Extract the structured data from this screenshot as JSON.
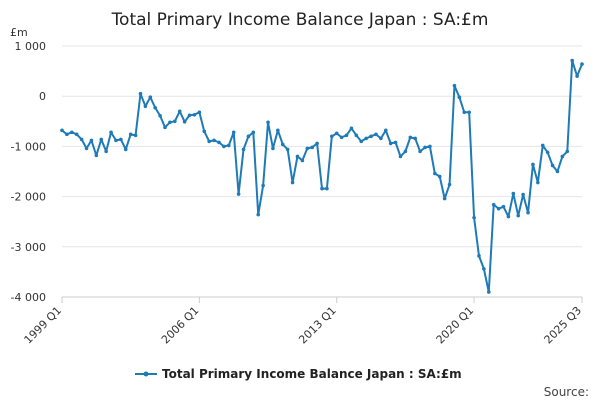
{
  "chart_data": {
    "type": "line",
    "title": "Total Primary Income Balance Japan : SA:£m",
    "unit_label": "£m",
    "source_label": "Source:",
    "x_tick_labels": [
      "1999 Q1",
      "2006 Q1",
      "2013 Q1",
      "2020 Q1",
      "2025 Q3"
    ],
    "x_tick_indices": [
      0,
      28,
      56,
      84,
      106
    ],
    "y_ticks": [
      1000,
      0,
      -1000,
      -2000,
      -3000,
      -4000
    ],
    "y_tick_labels": [
      "1 000",
      "0",
      "-1 000",
      "-2 000",
      "-3 000",
      "-4 000"
    ],
    "ylim": [
      -4000,
      1000
    ],
    "grid": true,
    "legend_position": "bottom",
    "series_color": "#1f7ab8",
    "series": [
      {
        "name": "Total Primary Income Balance Japan : SA:£m",
        "values": [
          -680,
          -760,
          -720,
          -760,
          -860,
          -1040,
          -880,
          -1180,
          -860,
          -1100,
          -720,
          -880,
          -860,
          -1060,
          -760,
          -780,
          50,
          -200,
          -20,
          -230,
          -390,
          -620,
          -520,
          -500,
          -300,
          -510,
          -380,
          -370,
          -320,
          -700,
          -900,
          -880,
          -920,
          -1000,
          -980,
          -720,
          -1950,
          -1060,
          -800,
          -720,
          -2360,
          -1780,
          -520,
          -1040,
          -680,
          -960,
          -1060,
          -1720,
          -1200,
          -1280,
          -1040,
          -1020,
          -940,
          -1840,
          -1840,
          -800,
          -740,
          -820,
          -780,
          -640,
          -780,
          -900,
          -840,
          -800,
          -760,
          -840,
          -680,
          -940,
          -920,
          -1200,
          -1100,
          -820,
          -840,
          -1100,
          -1020,
          -1000,
          -1540,
          -1600,
          -2040,
          -1760,
          210,
          -20,
          -320,
          -320,
          -2420,
          -3180,
          -3440,
          -3900,
          -2160,
          -2240,
          -2200,
          -2400,
          -1940,
          -2380,
          -1960,
          -2320,
          -1360,
          -1720,
          -980,
          -1120,
          -1380,
          -1500,
          -1200,
          -1100,
          710,
          400,
          640
        ]
      }
    ]
  }
}
